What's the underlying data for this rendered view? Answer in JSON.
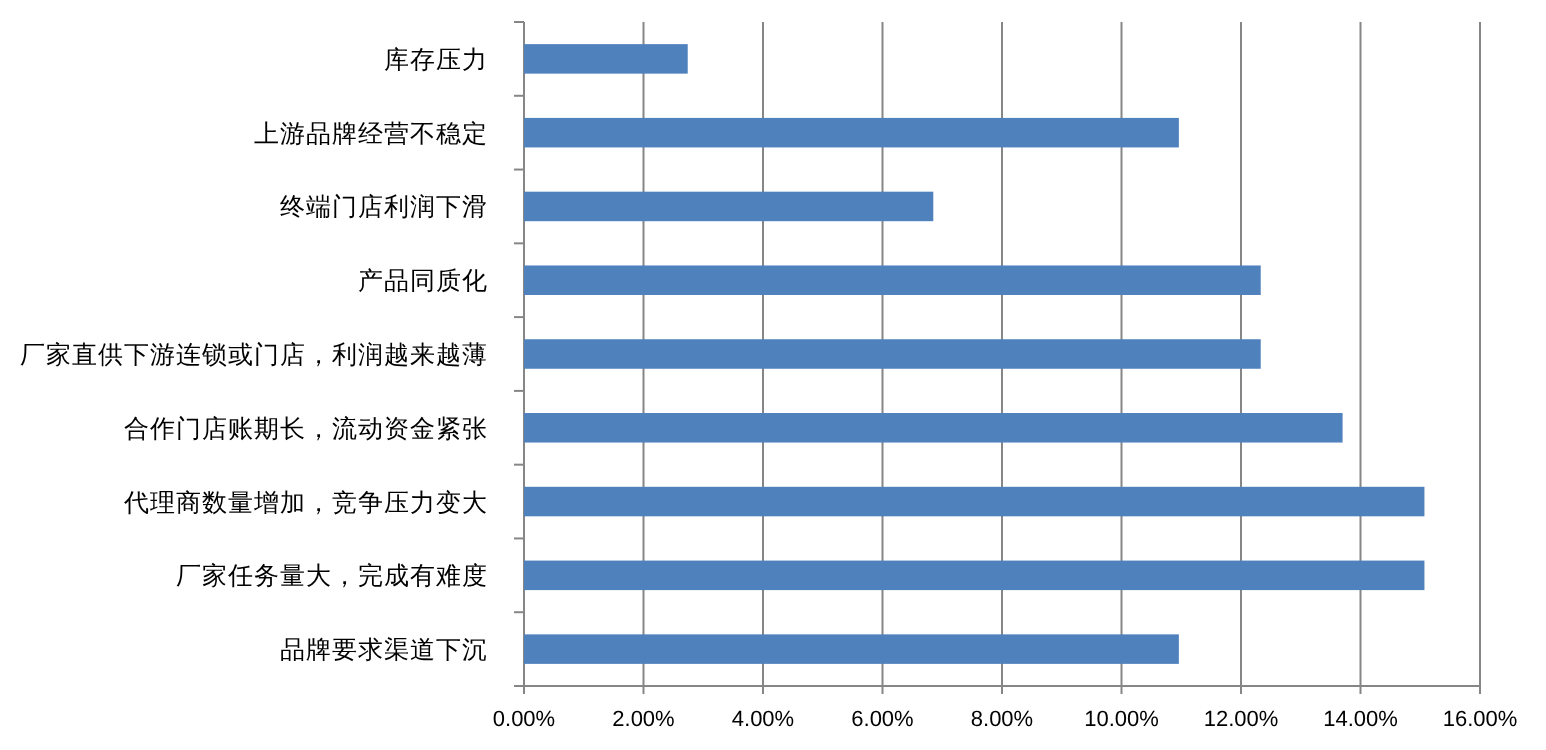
{
  "chart_data": {
    "type": "bar",
    "orientation": "horizontal",
    "categories": [
      "库存压力",
      "上游品牌经营不稳定",
      "终端门店利润下滑",
      "产品同质化",
      "厂家直供下游连锁或门店，利润越来越薄",
      "合作门店账期长，流动资金紧张",
      "代理商数量增加，竞争压力变大",
      "厂家任务量大，完成有难度",
      "品牌要求渠道下沉"
    ],
    "values": [
      2.74,
      10.96,
      6.85,
      12.33,
      12.33,
      13.7,
      15.07,
      15.07,
      10.96
    ],
    "color": "#4f81bd",
    "xlim": [
      0,
      16
    ],
    "xticks": [
      {
        "value": 0,
        "label": "0.00%"
      },
      {
        "value": 2,
        "label": "2.00%"
      },
      {
        "value": 4,
        "label": "4.00%"
      },
      {
        "value": 6,
        "label": "6.00%"
      },
      {
        "value": 8,
        "label": "8.00%"
      },
      {
        "value": 10,
        "label": "10.00%"
      },
      {
        "value": 12,
        "label": "12.00%"
      },
      {
        "value": 14,
        "label": "14.00%"
      },
      {
        "value": 16,
        "label": "16.00%"
      }
    ],
    "grid": "x"
  }
}
